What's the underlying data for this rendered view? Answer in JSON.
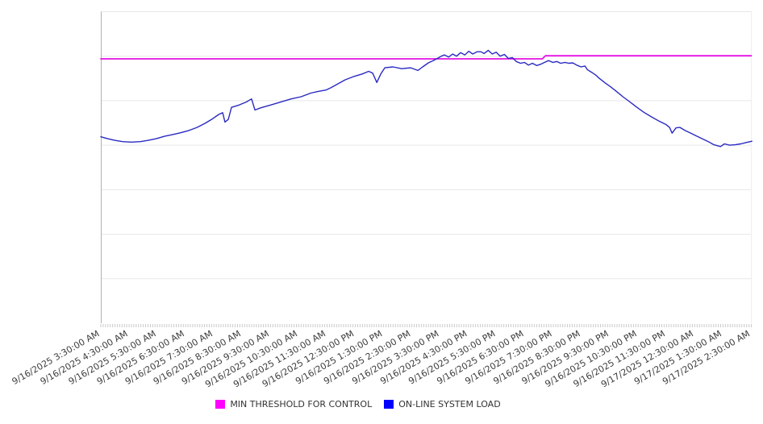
{
  "page": {
    "background": "#ffffff"
  },
  "chart_data": {
    "type": "line",
    "title": "",
    "x_axis": {
      "tick_labels": [
        "9/16/2025 3:30:00 AM",
        "9/16/2025 4:30:00 AM",
        "9/16/2025 5:30:00 AM",
        "9/16/2025 6:30:00 AM",
        "9/16/2025 7:30:00 AM",
        "9/16/2025 8:30:00 AM",
        "9/16/2025 9:30:00 AM",
        "9/16/2025 10:30:00 AM",
        "9/16/2025 11:30:00 AM",
        "9/16/2025 12:30:00 PM",
        "9/16/2025 1:30:00 PM",
        "9/16/2025 2:30:00 PM",
        "9/16/2025 3:30:00 PM",
        "9/16/2025 4:30:00 PM",
        "9/16/2025 5:30:00 PM",
        "9/16/2025 6:30:00 PM",
        "9/16/2025 7:30:00 PM",
        "9/16/2025 8:30:00 PM",
        "9/16/2025 9:30:00 PM",
        "9/16/2025 10:30:00 PM",
        "9/16/2025 11:30:00 PM",
        "9/17/2025 12:30:00 AM",
        "9/17/2025 1:30:00 AM",
        "9/17/2025 2:30:00 AM"
      ],
      "major_tick_interval": "1 hour",
      "minor_tick_interval": "5 minutes",
      "label_rotation_deg": -30,
      "x_unit": "hours since 9/16/2025 3:30:00 AM"
    },
    "y_axis": {
      "labels_visible": false,
      "gridline_count": 7,
      "value_scale_note": "y-axis has no visible labels; series values are expressed in gridline units (0 = x-axis baseline, 7 = top gridline)"
    },
    "series": [
      {
        "name": "MIN THRESHOLD FOR CONTROL",
        "role": "threshold",
        "color": "#e312e3",
        "points": [
          [
            0,
            5.94
          ],
          [
            15.61,
            5.94
          ],
          [
            15.72,
            6.01
          ],
          [
            23.0,
            6.01
          ]
        ]
      },
      {
        "name": "ON-LINE SYSTEM LOAD",
        "role": "load",
        "color": "#2a2ac2",
        "points": [
          [
            0,
            4.19
          ],
          [
            0.23,
            4.15
          ],
          [
            0.49,
            4.11
          ],
          [
            0.77,
            4.08
          ],
          [
            1.08,
            4.07
          ],
          [
            1.4,
            4.08
          ],
          [
            1.68,
            4.11
          ],
          [
            1.97,
            4.15
          ],
          [
            2.25,
            4.2
          ],
          [
            2.54,
            4.24
          ],
          [
            2.82,
            4.28
          ],
          [
            3.11,
            4.33
          ],
          [
            3.4,
            4.4
          ],
          [
            3.68,
            4.49
          ],
          [
            3.94,
            4.59
          ],
          [
            4.17,
            4.69
          ],
          [
            4.31,
            4.73
          ],
          [
            4.39,
            4.52
          ],
          [
            4.51,
            4.58
          ],
          [
            4.62,
            4.85
          ],
          [
            4.88,
            4.9
          ],
          [
            5.14,
            4.97
          ],
          [
            5.33,
            5.04
          ],
          [
            5.45,
            4.79
          ],
          [
            5.65,
            4.84
          ],
          [
            5.99,
            4.9
          ],
          [
            6.36,
            4.97
          ],
          [
            6.73,
            5.04
          ],
          [
            7.08,
            5.09
          ],
          [
            7.42,
            5.17
          ],
          [
            7.7,
            5.21
          ],
          [
            7.96,
            5.24
          ],
          [
            8.13,
            5.29
          ],
          [
            8.36,
            5.37
          ],
          [
            8.64,
            5.47
          ],
          [
            8.93,
            5.54
          ],
          [
            9.24,
            5.6
          ],
          [
            9.47,
            5.66
          ],
          [
            9.61,
            5.62
          ],
          [
            9.76,
            5.41
          ],
          [
            9.9,
            5.6
          ],
          [
            10.04,
            5.74
          ],
          [
            10.33,
            5.76
          ],
          [
            10.64,
            5.72
          ],
          [
            10.96,
            5.74
          ],
          [
            11.21,
            5.68
          ],
          [
            11.38,
            5.76
          ],
          [
            11.58,
            5.85
          ],
          [
            11.78,
            5.91
          ],
          [
            11.93,
            5.96
          ],
          [
            12.04,
            6.0
          ],
          [
            12.15,
            6.03
          ],
          [
            12.3,
            5.98
          ],
          [
            12.44,
            6.05
          ],
          [
            12.58,
            6.0
          ],
          [
            12.72,
            6.08
          ],
          [
            12.87,
            6.03
          ],
          [
            13.01,
            6.11
          ],
          [
            13.15,
            6.05
          ],
          [
            13.3,
            6.1
          ],
          [
            13.44,
            6.1
          ],
          [
            13.55,
            6.06
          ],
          [
            13.7,
            6.13
          ],
          [
            13.84,
            6.05
          ],
          [
            13.98,
            6.09
          ],
          [
            14.12,
            6.0
          ],
          [
            14.27,
            6.04
          ],
          [
            14.41,
            5.95
          ],
          [
            14.55,
            5.97
          ],
          [
            14.69,
            5.88
          ],
          [
            14.84,
            5.84
          ],
          [
            14.98,
            5.86
          ],
          [
            15.12,
            5.8
          ],
          [
            15.26,
            5.84
          ],
          [
            15.41,
            5.79
          ],
          [
            15.55,
            5.82
          ],
          [
            15.69,
            5.86
          ],
          [
            15.83,
            5.9
          ],
          [
            15.98,
            5.86
          ],
          [
            16.12,
            5.88
          ],
          [
            16.26,
            5.84
          ],
          [
            16.41,
            5.86
          ],
          [
            16.55,
            5.84
          ],
          [
            16.69,
            5.85
          ],
          [
            16.83,
            5.8
          ],
          [
            16.98,
            5.76
          ],
          [
            17.12,
            5.78
          ],
          [
            17.2,
            5.7
          ],
          [
            17.35,
            5.64
          ],
          [
            17.49,
            5.58
          ],
          [
            17.63,
            5.5
          ],
          [
            17.83,
            5.4
          ],
          [
            18.03,
            5.31
          ],
          [
            18.23,
            5.21
          ],
          [
            18.46,
            5.09
          ],
          [
            18.69,
            4.98
          ],
          [
            18.94,
            4.86
          ],
          [
            19.2,
            4.74
          ],
          [
            19.49,
            4.63
          ],
          [
            19.74,
            4.54
          ],
          [
            19.97,
            4.47
          ],
          [
            20.11,
            4.4
          ],
          [
            20.2,
            4.27
          ],
          [
            20.34,
            4.39
          ],
          [
            20.48,
            4.4
          ],
          [
            20.66,
            4.33
          ],
          [
            20.86,
            4.27
          ],
          [
            21.05,
            4.21
          ],
          [
            21.28,
            4.14
          ],
          [
            21.48,
            4.08
          ],
          [
            21.68,
            4.01
          ],
          [
            21.91,
            3.97
          ],
          [
            22.05,
            4.03
          ],
          [
            22.23,
            4.0
          ],
          [
            22.43,
            4.01
          ],
          [
            22.62,
            4.03
          ],
          [
            22.82,
            4.06
          ],
          [
            23.02,
            4.09
          ]
        ]
      }
    ],
    "legend": {
      "position": "bottom-center",
      "items": [
        {
          "label": "MIN THRESHOLD FOR CONTROL",
          "swatch_color": "#ff00ff"
        },
        {
          "label": "ON-LINE SYSTEM LOAD",
          "swatch_color": "#0000ff"
        }
      ]
    }
  }
}
